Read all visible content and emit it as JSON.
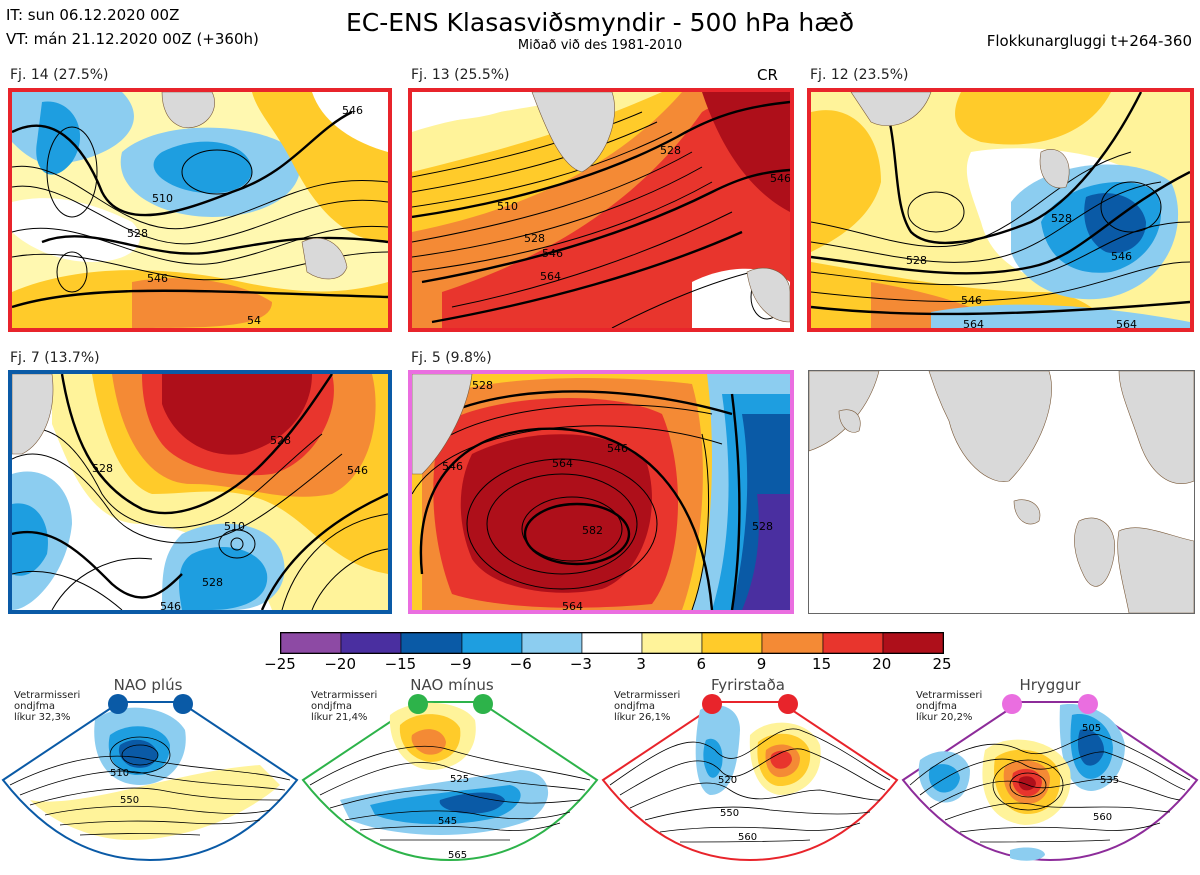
{
  "header": {
    "it_line": "IT: sun 06.12.2020 00Z",
    "vt_line": "VT: mán 21.12.2020 00Z  (+360h)",
    "title": "EC-ENS Klasasviðsmyndir - 500 hPa hæð",
    "subtitle": "Miðað við des 1981-2010",
    "window": "Flokkunargluggi t+264-360"
  },
  "panels": [
    {
      "label": "Fj. 14 (27.5%)",
      "contours": [
        "510",
        "528",
        "546",
        "546",
        "54"
      ],
      "frame_color": "#e8242b"
    },
    {
      "label": "Fj. 13 (25.5%)",
      "badge": "CR",
      "contours": [
        "510",
        "528",
        "546",
        "564",
        "528",
        "546"
      ],
      "frame_color": "#e8242b"
    },
    {
      "label": "Fj. 12 (23.5%)",
      "contours": [
        "528",
        "546",
        "546",
        "564",
        "528",
        "564"
      ],
      "frame_color": "#e8242b"
    },
    {
      "label": "Fj. 7 (13.7%)",
      "contours": [
        "528",
        "528",
        "546",
        "510",
        "528",
        "546"
      ],
      "frame_color": "#0a5aa6"
    },
    {
      "label": "Fj. 5 (9.8%)",
      "contours": [
        "528",
        "546",
        "564",
        "582",
        "564",
        "546",
        "528"
      ],
      "frame_color": "#ea6ee0"
    }
  ],
  "chart_data": {
    "type": "heatmap",
    "title": "EC-ENS Klasasviðsmyndir - 500 hPa hæð",
    "subtitle": "Miðað við des 1981-2010",
    "colorbar": {
      "ticks": [
        "−25",
        "−20",
        "−15",
        "−9",
        "−6",
        "−3",
        "3",
        "6",
        "9",
        "15",
        "20",
        "25"
      ],
      "bounds": [
        -25,
        -20,
        -15,
        -9,
        -6,
        -3,
        3,
        6,
        9,
        15,
        20,
        25
      ],
      "colors": [
        "#8d4aa4",
        "#4a2fa0",
        "#0a5aa6",
        "#1e9ee0",
        "#8ccdf0",
        "#ffffff",
        "#fff39a",
        "#ffcb2a",
        "#f48a35",
        "#e8352d",
        "#ae0f1a"
      ]
    },
    "clusters": [
      {
        "name": "Fj. 14",
        "share_pct": 27.5
      },
      {
        "name": "Fj. 13",
        "share_pct": 25.5
      },
      {
        "name": "Fj. 12",
        "share_pct": 23.5
      },
      {
        "name": "Fj. 7",
        "share_pct": 13.7
      },
      {
        "name": "Fj. 5",
        "share_pct": 9.8
      }
    ]
  },
  "regimes": [
    {
      "name": "NAO plús",
      "line1": "Vetrarmisseri",
      "line2": "ondjfma",
      "line3": "líkur 32,3%",
      "color": "#0a5aa6",
      "contours": [
        "510",
        "550"
      ]
    },
    {
      "name": "NAO mínus",
      "line1": "Vetrarmisseri",
      "line2": "ondjfma",
      "line3": "líkur 21,4%",
      "color": "#2db34a",
      "contours": [
        "525",
        "545",
        "565"
      ]
    },
    {
      "name": "Fyrirstaða",
      "line1": "Vetrarmisseri",
      "line2": "ondjfma",
      "line3": "líkur 26,1%",
      "color": "#e8242b",
      "contours": [
        "520",
        "550",
        "560"
      ]
    },
    {
      "name": "Hryggur",
      "line1": "Vetrarmisseri",
      "line2": "ondjfma",
      "line3": "líkur 20,2%",
      "color": "#ea6ee0",
      "contours": [
        "505",
        "535",
        "560"
      ]
    }
  ]
}
